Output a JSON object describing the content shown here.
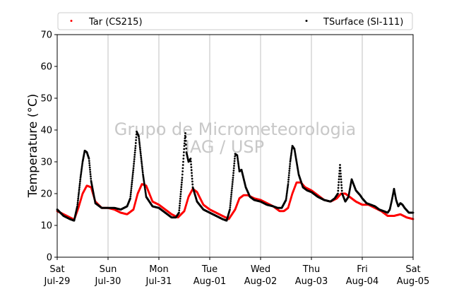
{
  "chart_data": {
    "type": "scatter",
    "title": "",
    "xlabel": "",
    "ylabel": "Temperature (°C)",
    "ylim": [
      0,
      70
    ],
    "y_ticks": [
      0,
      10,
      20,
      30,
      40,
      50,
      60,
      70
    ],
    "xlim": [
      "2017-07-29",
      "2017-08-05"
    ],
    "x_ticks": [
      {
        "date": "2017-07-29",
        "day": "Sat",
        "label": "Jul-29"
      },
      {
        "date": "2017-07-30",
        "day": "Sun",
        "label": "Jul-30"
      },
      {
        "date": "2017-07-31",
        "day": "Mon",
        "label": "Jul-31"
      },
      {
        "date": "2017-08-01",
        "day": "Tue",
        "label": "Aug-01"
      },
      {
        "date": "2017-08-02",
        "day": "Wed",
        "label": "Aug-02"
      },
      {
        "date": "2017-08-03",
        "day": "Thu",
        "label": "Aug-03"
      },
      {
        "date": "2017-08-04",
        "day": "Fri",
        "label": "Aug-04"
      },
      {
        "date": "2017-08-05",
        "day": "Sat",
        "label": "Aug-05"
      }
    ],
    "grid": "vertical",
    "legend_placement": "top",
    "watermark": [
      "Grupo de Micrometeorologia",
      "IAG / USP"
    ],
    "series": [
      {
        "name": "Tar (CS215)",
        "color": "#ff0000",
        "x": [
          "2017-07-29 00:00",
          "2017-07-29 03:00",
          "2017-07-29 06:00",
          "2017-07-29 08:00",
          "2017-07-29 10:00",
          "2017-07-29 12:00",
          "2017-07-29 14:00",
          "2017-07-29 16:00",
          "2017-07-29 18:00",
          "2017-07-29 21:00",
          "2017-07-30 00:00",
          "2017-07-30 03:00",
          "2017-07-30 06:00",
          "2017-07-30 09:00",
          "2017-07-30 12:00",
          "2017-07-30 14:00",
          "2017-07-30 16:00",
          "2017-07-30 18:00",
          "2017-07-30 21:00",
          "2017-07-31 00:00",
          "2017-07-31 03:00",
          "2017-07-31 06:00",
          "2017-07-31 09:00",
          "2017-07-31 12:00",
          "2017-07-31 14:00",
          "2017-07-31 16:00",
          "2017-07-31 18:00",
          "2017-07-31 21:00",
          "2017-08-01 00:00",
          "2017-08-01 03:00",
          "2017-08-01 06:00",
          "2017-08-01 09:00",
          "2017-08-01 12:00",
          "2017-08-01 14:00",
          "2017-08-01 16:00",
          "2017-08-01 18:00",
          "2017-08-01 21:00",
          "2017-08-02 00:00",
          "2017-08-02 03:00",
          "2017-08-02 06:00",
          "2017-08-02 09:00",
          "2017-08-02 11:00",
          "2017-08-02 13:00",
          "2017-08-02 15:00",
          "2017-08-02 17:00",
          "2017-08-02 19:00",
          "2017-08-02 21:00",
          "2017-08-03 00:00",
          "2017-08-03 03:00",
          "2017-08-03 06:00",
          "2017-08-03 09:00",
          "2017-08-03 12:00",
          "2017-08-03 14:00",
          "2017-08-03 16:00",
          "2017-08-03 18:00",
          "2017-08-03 21:00",
          "2017-08-04 00:00",
          "2017-08-04 03:00",
          "2017-08-04 06:00",
          "2017-08-04 09:00",
          "2017-08-04 12:00",
          "2017-08-04 15:00",
          "2017-08-04 18:00",
          "2017-08-04 21:00",
          "2017-08-05 00:00"
        ],
        "y": [
          14.5,
          13.5,
          12.5,
          11.8,
          15.5,
          20.0,
          22.5,
          22.0,
          17.5,
          15.5,
          15.5,
          15.0,
          14.0,
          13.5,
          15.0,
          20.0,
          23.0,
          22.5,
          17.5,
          16.5,
          15.0,
          13.5,
          12.5,
          14.5,
          19.0,
          21.5,
          20.5,
          16.5,
          15.0,
          14.0,
          13.0,
          12.0,
          15.0,
          18.5,
          19.5,
          19.5,
          18.5,
          18.0,
          17.0,
          16.0,
          14.5,
          14.5,
          15.5,
          20.0,
          23.5,
          23.5,
          22.0,
          21.0,
          19.5,
          18.0,
          17.5,
          18.5,
          20.0,
          20.0,
          19.0,
          17.5,
          16.5,
          16.5,
          15.5,
          14.5,
          13.0,
          13.0,
          13.5,
          12.5,
          12.0
        ]
      },
      {
        "name": "TSurface (SI-111)",
        "color": "#000000",
        "x": [
          "2017-07-29 00:00",
          "2017-07-29 03:00",
          "2017-07-29 06:00",
          "2017-07-29 08:00",
          "2017-07-29 09:30",
          "2017-07-29 11:00",
          "2017-07-29 12:00",
          "2017-07-29 13:00",
          "2017-07-29 14:00",
          "2017-07-29 15:00",
          "2017-07-29 16:00",
          "2017-07-29 18:00",
          "2017-07-29 21:00",
          "2017-07-30 00:00",
          "2017-07-30 03:00",
          "2017-07-30 06:00",
          "2017-07-30 09:00",
          "2017-07-30 10:30",
          "2017-07-30 12:00",
          "2017-07-30 13:00",
          "2017-07-30 13:30",
          "2017-07-30 14:30",
          "2017-07-30 15:30",
          "2017-07-30 16:30",
          "2017-07-30 18:00",
          "2017-07-30 21:00",
          "2017-07-31 00:00",
          "2017-07-31 03:00",
          "2017-07-31 06:00",
          "2017-07-31 08:00",
          "2017-07-31 09:30",
          "2017-07-31 11:00",
          "2017-07-31 12:00",
          "2017-07-31 12:30",
          "2017-07-31 13:00",
          "2017-07-31 14:00",
          "2017-07-31 15:00",
          "2017-07-31 16:00",
          "2017-07-31 18:00",
          "2017-07-31 21:00",
          "2017-08-01 00:00",
          "2017-08-01 03:00",
          "2017-08-01 06:00",
          "2017-08-01 08:00",
          "2017-08-01 09:30",
          "2017-08-01 11:00",
          "2017-08-01 12:00",
          "2017-08-01 13:00",
          "2017-08-01 14:00",
          "2017-08-01 15:00",
          "2017-08-01 17:00",
          "2017-08-01 19:00",
          "2017-08-01 21:00",
          "2017-08-02 00:00",
          "2017-08-02 03:00",
          "2017-08-02 06:00",
          "2017-08-02 08:00",
          "2017-08-02 10:00",
          "2017-08-02 12:00",
          "2017-08-02 13:00",
          "2017-08-02 14:00",
          "2017-08-02 15:00",
          "2017-08-02 16:00",
          "2017-08-02 17:00",
          "2017-08-02 18:00",
          "2017-08-02 20:00",
          "2017-08-02 22:00",
          "2017-08-03 00:00",
          "2017-08-03 03:00",
          "2017-08-03 06:00",
          "2017-08-03 09:00",
          "2017-08-03 11:00",
          "2017-08-03 12:30",
          "2017-08-03 13:30",
          "2017-08-03 14:30",
          "2017-08-03 16:00",
          "2017-08-03 17:30",
          "2017-08-03 19:00",
          "2017-08-03 21:00",
          "2017-08-03 23:00",
          "2017-08-04 00:00",
          "2017-08-04 02:00",
          "2017-08-04 04:00",
          "2017-08-04 06:00",
          "2017-08-04 08:00",
          "2017-08-04 10:00",
          "2017-08-04 12:00",
          "2017-08-04 13:00",
          "2017-08-04 14:00",
          "2017-08-04 15:00",
          "2017-08-04 16:00",
          "2017-08-04 17:00",
          "2017-08-04 18:00",
          "2017-08-04 19:00",
          "2017-08-04 20:00",
          "2017-08-04 22:00",
          "2017-08-05 00:00"
        ],
        "y": [
          15.0,
          13.0,
          12.0,
          11.5,
          16.0,
          25.0,
          30.0,
          33.5,
          33.0,
          31.0,
          24.0,
          17.0,
          15.5,
          15.5,
          15.5,
          15.0,
          16.0,
          18.5,
          28.0,
          35.0,
          39.5,
          38.0,
          32.0,
          26.0,
          19.0,
          16.0,
          15.5,
          14.0,
          12.5,
          12.5,
          14.0,
          25.0,
          35.0,
          39.0,
          33.0,
          30.0,
          31.0,
          22.0,
          17.5,
          15.0,
          14.0,
          13.0,
          12.0,
          11.5,
          15.0,
          25.0,
          32.5,
          32.0,
          27.0,
          27.5,
          22.0,
          19.0,
          18.0,
          17.5,
          16.5,
          16.0,
          15.5,
          15.5,
          18.0,
          23.0,
          30.0,
          35.0,
          34.0,
          30.0,
          26.0,
          22.0,
          21.0,
          20.5,
          19.0,
          18.0,
          17.5,
          18.5,
          20.0,
          29.0,
          20.0,
          17.5,
          19.0,
          24.5,
          21.0,
          19.5,
          18.5,
          17.0,
          16.5,
          16.0,
          15.0,
          14.5,
          14.0,
          15.0,
          18.0,
          21.5,
          18.0,
          16.0,
          17.0,
          16.5,
          15.5,
          14.0,
          14.0
        ]
      }
    ]
  }
}
